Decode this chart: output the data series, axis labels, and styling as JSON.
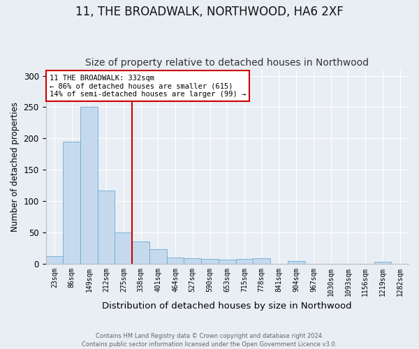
{
  "title": "11, THE BROADWALK, NORTHWOOD, HA6 2XF",
  "subtitle": "Size of property relative to detached houses in Northwood",
  "xlabel": "Distribution of detached houses by size in Northwood",
  "ylabel": "Number of detached properties",
  "categories": [
    "23sqm",
    "86sqm",
    "149sqm",
    "212sqm",
    "275sqm",
    "338sqm",
    "401sqm",
    "464sqm",
    "527sqm",
    "590sqm",
    "653sqm",
    "715sqm",
    "778sqm",
    "841sqm",
    "904sqm",
    "967sqm",
    "1030sqm",
    "1093sqm",
    "1156sqm",
    "1219sqm",
    "1282sqm"
  ],
  "values": [
    12,
    195,
    250,
    117,
    50,
    35,
    23,
    10,
    9,
    7,
    6,
    8,
    9,
    0,
    4,
    0,
    0,
    0,
    0,
    3,
    0
  ],
  "bar_color": "#c5d9ee",
  "bar_edge_color": "#6aaad4",
  "red_line_index": 5,
  "annotation_title": "11 THE BROADWALK: 332sqm",
  "annotation_line1": "← 86% of detached houses are smaller (615)",
  "annotation_line2": "14% of semi-detached houses are larger (99) →",
  "annotation_box_color": "#ffffff",
  "annotation_box_edge": "#cc0000",
  "red_line_color": "#cc0000",
  "footer1": "Contains HM Land Registry data © Crown copyright and database right 2024.",
  "footer2": "Contains public sector information licensed under the Open Government Licence v3.0.",
  "ylim": [
    0,
    310
  ],
  "yticks": [
    0,
    50,
    100,
    150,
    200,
    250,
    300
  ],
  "background_color": "#e8eef4",
  "plot_bg_color": "#e8eef4",
  "title_fontsize": 12,
  "subtitle_fontsize": 10
}
